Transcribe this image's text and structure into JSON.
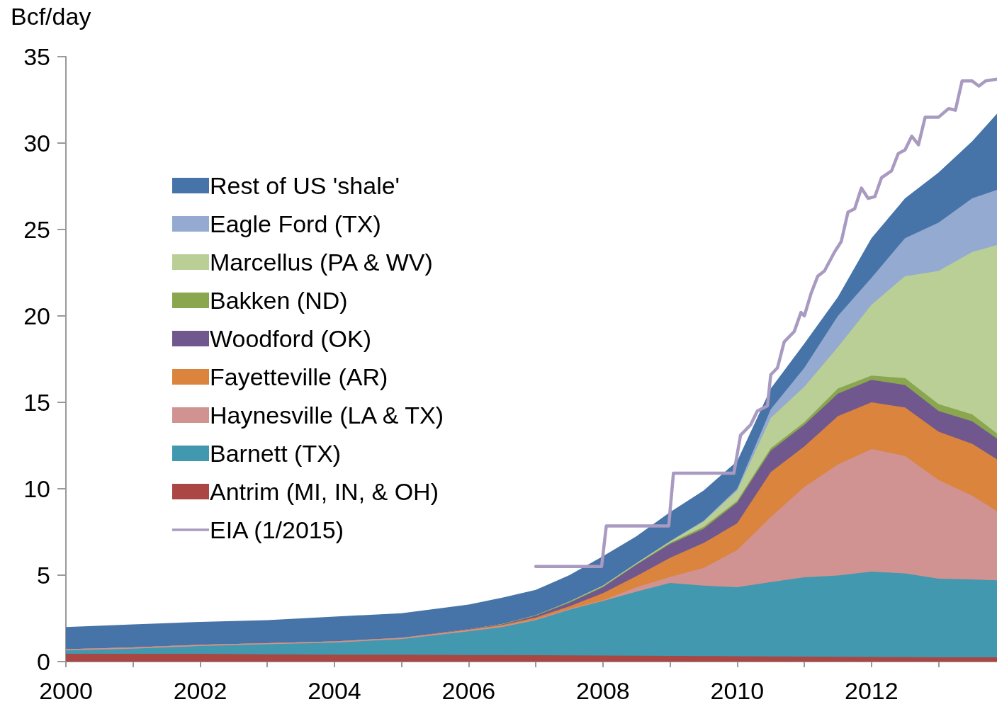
{
  "chart_data": {
    "type": "area",
    "ylabel": "Bcf/day",
    "x": [
      2000,
      2001,
      2002,
      2003,
      2004,
      2005,
      2006,
      2006.5,
      2007,
      2007.5,
      2008,
      2008.5,
      2009,
      2009.5,
      2010,
      2010.5,
      2011,
      2011.5,
      2012,
      2012.5,
      2013,
      2013.5,
      2013.87
    ],
    "stacked": true,
    "series": [
      {
        "name": "Antrim (MI, IN, & OH)",
        "color": "#aa4643",
        "values": [
          0.45,
          0.45,
          0.45,
          0.42,
          0.4,
          0.4,
          0.38,
          0.38,
          0.37,
          0.36,
          0.35,
          0.34,
          0.33,
          0.32,
          0.31,
          0.3,
          0.29,
          0.28,
          0.27,
          0.26,
          0.25,
          0.25,
          0.25
        ]
      },
      {
        "name": "Barnett (TX)",
        "color": "#4198af",
        "values": [
          0.2,
          0.3,
          0.45,
          0.58,
          0.7,
          0.9,
          1.37,
          1.62,
          2.03,
          2.64,
          3.15,
          3.71,
          4.22,
          4.08,
          3.99,
          4.3,
          4.59,
          4.7,
          4.93,
          4.84,
          4.55,
          4.5,
          4.45
        ]
      },
      {
        "name": "Haynesville (LA & TX)",
        "color": "#d19392",
        "values": [
          0.07,
          0.07,
          0.07,
          0.07,
          0.07,
          0.07,
          0.07,
          0.07,
          0.05,
          0.05,
          0.05,
          0.25,
          0.35,
          1.02,
          2.15,
          3.76,
          5.22,
          6.42,
          7.1,
          6.8,
          5.7,
          4.85,
          4.0
        ]
      },
      {
        "name": "Fayetteville (AR)",
        "color": "#db843d",
        "values": [
          0,
          0,
          0,
          0,
          0,
          0,
          0.03,
          0.05,
          0.1,
          0.15,
          0.4,
          0.65,
          1.1,
          1.44,
          1.55,
          2.6,
          2.35,
          2.8,
          2.7,
          2.8,
          2.8,
          3.0,
          3.0
        ]
      },
      {
        "name": "Woodford (OK)",
        "color": "#70588f",
        "values": [
          0,
          0,
          0,
          0,
          0,
          0,
          0.02,
          0.03,
          0.1,
          0.2,
          0.35,
          0.65,
          0.8,
          0.82,
          1.2,
          1.24,
          1.25,
          1.3,
          1.3,
          1.3,
          1.2,
          1.3,
          1.2
        ]
      },
      {
        "name": "Bakken (ND)",
        "color": "#8aa64e",
        "values": [
          0,
          0,
          0,
          0,
          0,
          0,
          0,
          0.02,
          0.03,
          0.05,
          0.05,
          0.05,
          0.07,
          0.12,
          0.1,
          0.15,
          0.15,
          0.3,
          0.25,
          0.4,
          0.4,
          0.4,
          0.3
        ]
      },
      {
        "name": "Marcellus (PA & WV)",
        "color": "#b9cf96",
        "values": [
          0,
          0,
          0,
          0,
          0,
          0,
          0,
          0,
          0,
          0.02,
          0.05,
          0.05,
          0.08,
          0.3,
          0.6,
          1.75,
          2.05,
          2.4,
          4.1,
          5.9,
          7.7,
          9.4,
          10.9
        ]
      },
      {
        "name": "Eagle Ford (TX)",
        "color": "#94aad0",
        "values": [
          0,
          0,
          0,
          0,
          0,
          0,
          0,
          0,
          0,
          0,
          0,
          0,
          0.02,
          0.05,
          0.1,
          0.5,
          1.1,
          1.8,
          1.55,
          2.2,
          2.8,
          3.1,
          3.2
        ]
      },
      {
        "name": "Rest of US 'shale'",
        "color": "#4674a8",
        "values": [
          1.28,
          1.33,
          1.33,
          1.33,
          1.43,
          1.43,
          1.43,
          1.53,
          1.47,
          1.53,
          1.7,
          1.55,
          1.68,
          1.75,
          1.6,
          1.2,
          1.4,
          1.1,
          2.3,
          2.3,
          2.9,
          3.3,
          4.4
        ]
      },
      {
        "name": "EIA (1/2015)",
        "type": "line",
        "color": "#a89ac0",
        "line_style": "solid",
        "x": [
          2007,
          2007.98,
          2008.05,
          2008.98,
          2009.05,
          2009.95,
          2010.05,
          2010.2,
          2010.3,
          2010.45,
          2010.5,
          2010.6,
          2010.7,
          2010.85,
          2010.95,
          2011.0,
          2011.1,
          2011.2,
          2011.3,
          2011.45,
          2011.55,
          2011.65,
          2011.75,
          2011.85,
          2011.95,
          2012.05,
          2012.15,
          2012.3,
          2012.4,
          2012.5,
          2012.6,
          2012.7,
          2012.8,
          2012.9,
          2013.0,
          2013.15,
          2013.25,
          2013.35,
          2013.5,
          2013.6,
          2013.7,
          2013.87
        ],
        "values": [
          5.5,
          5.5,
          7.85,
          7.85,
          10.9,
          10.9,
          13.1,
          13.7,
          14.5,
          14.8,
          16.6,
          17.0,
          18.5,
          19.1,
          20.2,
          20.0,
          21.3,
          22.3,
          22.6,
          23.7,
          24.3,
          26.0,
          26.2,
          27.4,
          26.8,
          26.9,
          28.0,
          28.4,
          29.4,
          29.6,
          30.4,
          29.9,
          31.5,
          31.5,
          31.5,
          32.0,
          31.9,
          33.6,
          33.6,
          33.3,
          33.6,
          33.7
        ]
      }
    ],
    "xlim": [
      2000,
      2013.87
    ],
    "xticks": [
      2000,
      {
        "value": 2001,
        "label": null
      },
      2002,
      {
        "value": 2003,
        "label": null
      },
      2004,
      {
        "value": 2005,
        "label": null
      },
      2006,
      {
        "value": 2007,
        "label": null
      },
      2008,
      {
        "value": 2009,
        "label": null
      },
      2010,
      {
        "value": 2011,
        "label": null
      },
      2012,
      {
        "value": 2013,
        "label": null
      }
    ],
    "ylim": [
      0,
      35
    ],
    "yticks": [
      0,
      5,
      10,
      15,
      20,
      25,
      30,
      35
    ],
    "grid": false,
    "legend": "left",
    "marker": "none"
  }
}
